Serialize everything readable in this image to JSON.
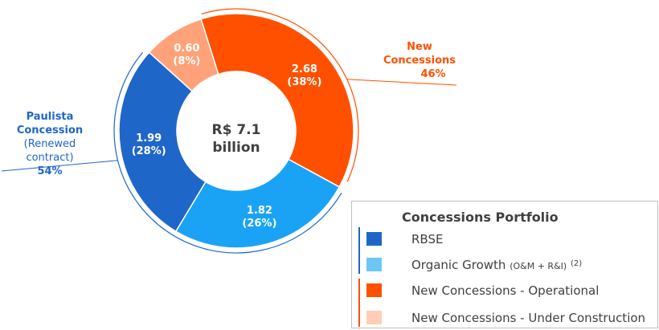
{
  "chart_data": {
    "type": "donut",
    "center_label": [
      "R$ 7.1",
      "billion"
    ],
    "slices": [
      {
        "name": "New Concessions - Operational",
        "value": 2.68,
        "value_label": "2.68",
        "percent_label": "(38%)",
        "color": "#FF5000"
      },
      {
        "name": "Organic Growth (O&M + R&I)",
        "value": 1.82,
        "value_label": "1.82",
        "percent_label": "(26%)",
        "color": "#1AA3F5"
      },
      {
        "name": "RBSE",
        "value": 1.99,
        "value_label": "1.99",
        "percent_label": "(28%)",
        "color": "#1F66C9"
      },
      {
        "name": "New Concessions - Under Construction",
        "value": 0.6,
        "value_label": "0.60",
        "percent_label": "(8%)",
        "color": "#FFA27A"
      }
    ],
    "groups": [
      {
        "name_lines": [
          "New",
          "Concessions"
        ],
        "percent": "46%",
        "color": "#FF5000"
      },
      {
        "name_lines": [
          "Paulista",
          "Concession"
        ],
        "subtitle": "(Renewed contract)",
        "percent": "54%",
        "color": "#1F66C9"
      }
    ]
  },
  "legend": {
    "title": "Concessions Portfolio",
    "items": [
      {
        "label": "RBSE",
        "color": "#1F66C9"
      },
      {
        "label": "Organic Growth",
        "note": "(O&M + R&I)",
        "sup": "(2)",
        "color": "#6EC6F7"
      },
      {
        "label": "New Concessions - Operational",
        "color": "#FF5000"
      },
      {
        "label": "New Concessions - Under Construction",
        "color": "#FFCDB8"
      }
    ],
    "bracket_colors": {
      "paulista": "#1F66C9",
      "new": "#FF5000"
    }
  }
}
